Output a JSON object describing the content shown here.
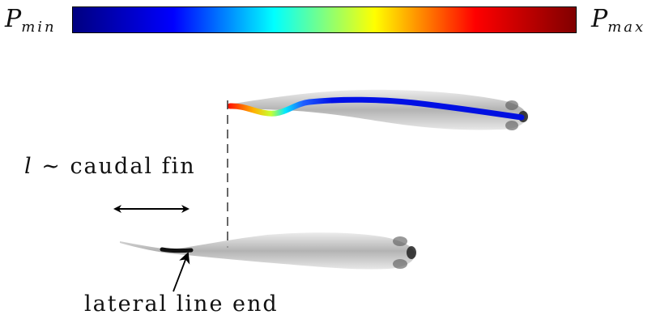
{
  "colorbar": {
    "min_label": {
      "base": "P",
      "sub": "min"
    },
    "max_label": {
      "base": "P",
      "sub": "max"
    },
    "stops": [
      "#000080",
      "#0000ff",
      "#00ffff",
      "#ffff00",
      "#ff0000",
      "#800000"
    ]
  },
  "annotations": {
    "caudal_symbol": "l",
    "caudal_text": "∼ caudal fin",
    "lateral_text": "lateral line end"
  }
}
